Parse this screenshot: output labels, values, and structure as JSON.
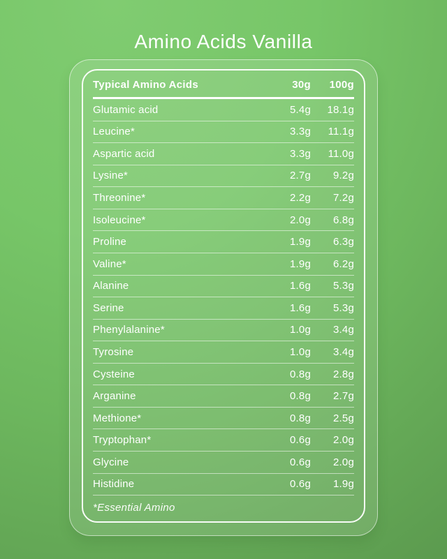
{
  "title": "Amino Acids Vanilla",
  "table": {
    "header": {
      "label": "Typical Amino Acids",
      "col_30g": "30g",
      "col_100g": "100g"
    },
    "rows": [
      {
        "name": "Glutamic acid",
        "per_30g": "5.4g",
        "per_100g": "18.1g"
      },
      {
        "name": "Leucine*",
        "per_30g": "3.3g",
        "per_100g": "11.1g"
      },
      {
        "name": "Aspartic acid",
        "per_30g": "3.3g",
        "per_100g": "11.0g"
      },
      {
        "name": "Lysine*",
        "per_30g": "2.7g",
        "per_100g": "9.2g"
      },
      {
        "name": "Threonine*",
        "per_30g": "2.2g",
        "per_100g": "7.2g"
      },
      {
        "name": "Isoleucine*",
        "per_30g": "2.0g",
        "per_100g": "6.8g"
      },
      {
        "name": "Proline",
        "per_30g": "1.9g",
        "per_100g": "6.3g"
      },
      {
        "name": "Valine*",
        "per_30g": "1.9g",
        "per_100g": "6.2g"
      },
      {
        "name": "Alanine",
        "per_30g": "1.6g",
        "per_100g": "5.3g"
      },
      {
        "name": "Serine",
        "per_30g": "1.6g",
        "per_100g": "5.3g"
      },
      {
        "name": "Phenylalanine*",
        "per_30g": "1.0g",
        "per_100g": "3.4g"
      },
      {
        "name": "Tyrosine",
        "per_30g": "1.0g",
        "per_100g": "3.4g"
      },
      {
        "name": "Cysteine",
        "per_30g": "0.8g",
        "per_100g": "2.8g"
      },
      {
        "name": "Arganine",
        "per_30g": "0.8g",
        "per_100g": "2.7g"
      },
      {
        "name": "Methione*",
        "per_30g": "0.8g",
        "per_100g": "2.5g"
      },
      {
        "name": "Tryptophan*",
        "per_30g": "0.6g",
        "per_100g": "2.0g"
      },
      {
        "name": "Glycine",
        "per_30g": "0.6g",
        "per_100g": "2.0g"
      },
      {
        "name": "Histidine",
        "per_30g": "0.6g",
        "per_100g": "1.9g"
      }
    ],
    "footnote": "*Essential Amino"
  },
  "colors": {
    "background_light": "#80CC71",
    "background_dark": "#5C9B4F",
    "text": "#FFFFFF",
    "divider": "#FFFFFF"
  }
}
